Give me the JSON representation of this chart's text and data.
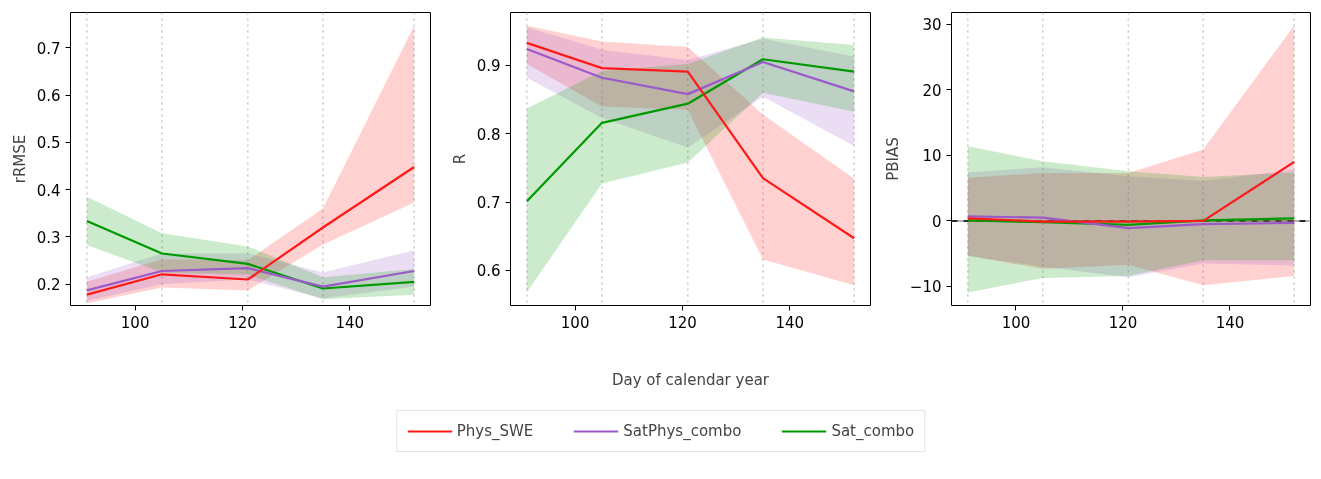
{
  "chart_data": [
    {
      "type": "line",
      "ylabel": "rRMSE",
      "x": [
        91,
        105,
        121,
        135,
        152
      ],
      "xlim": [
        87.95,
        155.05
      ],
      "xticks": [
        100,
        120,
        140
      ],
      "ylim": [
        0.155,
        0.775
      ],
      "yticks": [
        0.2,
        0.3,
        0.4,
        0.5,
        0.6,
        0.7
      ],
      "grid": false,
      "ref_lines": [
        {
          "axis": "x",
          "value": 91,
          "color": "#c8c8c8",
          "line_style": "dotted"
        },
        {
          "axis": "x",
          "value": 105,
          "color": "#c8c8c8",
          "line_style": "dotted"
        },
        {
          "axis": "x",
          "value": 121,
          "color": "#c8c8c8",
          "line_style": "dotted"
        },
        {
          "axis": "x",
          "value": 135,
          "color": "#c8c8c8",
          "line_style": "dotted"
        },
        {
          "axis": "x",
          "value": 152,
          "color": "#c8c8c8",
          "line_style": "dotted"
        }
      ],
      "series": [
        {
          "color": "#ff1a1a",
          "values": [
            0.178,
            0.221,
            0.21,
            0.32,
            0.448
          ],
          "lower": [
            0.16,
            0.193,
            0.187,
            0.284,
            0.373
          ],
          "upper": [
            0.205,
            0.253,
            0.251,
            0.36,
            0.747
          ]
        },
        {
          "color": "#9b59c9",
          "values": [
            0.187,
            0.228,
            0.234,
            0.195,
            0.228
          ],
          "lower": [
            0.165,
            0.2,
            0.21,
            0.17,
            0.195
          ],
          "upper": [
            0.215,
            0.265,
            0.265,
            0.225,
            0.272
          ]
        },
        {
          "color": "#009900",
          "values": [
            0.334,
            0.265,
            0.243,
            0.191,
            0.205
          ],
          "lower": [
            0.283,
            0.225,
            0.22,
            0.168,
            0.178
          ],
          "upper": [
            0.385,
            0.308,
            0.28,
            0.215,
            0.232
          ]
        }
      ]
    },
    {
      "type": "line",
      "ylabel": "R",
      "xlabel": "Day of calendar year",
      "legend": "bottom",
      "x": [
        91,
        105,
        121,
        135,
        152
      ],
      "xlim": [
        87.95,
        155.05
      ],
      "xticks": [
        100,
        120,
        140
      ],
      "ylim": [
        0.5485,
        0.9775
      ],
      "yticks": [
        0.6,
        0.7,
        0.8,
        0.9
      ],
      "grid": false,
      "ref_lines": [
        {
          "axis": "x",
          "value": 91,
          "color": "#c8c8c8",
          "line_style": "dotted"
        },
        {
          "axis": "x",
          "value": 105,
          "color": "#c8c8c8",
          "line_style": "dotted"
        },
        {
          "axis": "x",
          "value": 121,
          "color": "#c8c8c8",
          "line_style": "dotted"
        },
        {
          "axis": "x",
          "value": 135,
          "color": "#c8c8c8",
          "line_style": "dotted"
        },
        {
          "axis": "x",
          "value": 152,
          "color": "#c8c8c8",
          "line_style": "dotted"
        }
      ],
      "series": [
        {
          "name": "Phys_SWE",
          "color": "#ff1a1a",
          "values": [
            0.933,
            0.896,
            0.891,
            0.735,
            0.647
          ],
          "lower": [
            0.902,
            0.84,
            0.835,
            0.616,
            0.578
          ],
          "upper": [
            0.958,
            0.935,
            0.927,
            0.828,
            0.734
          ]
        },
        {
          "name": "SatPhys_combo",
          "color": "#9b59c9",
          "values": [
            0.924,
            0.882,
            0.858,
            0.905,
            0.862
          ],
          "lower": [
            0.882,
            0.823,
            0.78,
            0.854,
            0.782
          ],
          "upper": [
            0.956,
            0.923,
            0.908,
            0.939,
            0.913
          ]
        },
        {
          "name": "Sat_combo",
          "color": "#009900",
          "values": [
            0.701,
            0.816,
            0.844,
            0.909,
            0.891
          ],
          "lower": [
            0.568,
            0.727,
            0.758,
            0.86,
            0.832
          ],
          "upper": [
            0.837,
            0.892,
            0.902,
            0.941,
            0.93
          ]
        }
      ]
    },
    {
      "type": "line",
      "ylabel": "PBIAS",
      "x": [
        91,
        105,
        121,
        135,
        152
      ],
      "xlim": [
        87.95,
        155.05
      ],
      "xticks": [
        100,
        120,
        140
      ],
      "ylim": [
        -12.9,
        31.8
      ],
      "yticks": [
        {
          "value": -10,
          "label": "−10"
        },
        0,
        10,
        20,
        30
      ],
      "grid": false,
      "ref_lines": [
        {
          "axis": "x",
          "value": 91,
          "color": "#c8c8c8",
          "line_style": "dotted"
        },
        {
          "axis": "x",
          "value": 105,
          "color": "#c8c8c8",
          "line_style": "dotted"
        },
        {
          "axis": "x",
          "value": 121,
          "color": "#c8c8c8",
          "line_style": "dotted"
        },
        {
          "axis": "x",
          "value": 135,
          "color": "#c8c8c8",
          "line_style": "dotted"
        },
        {
          "axis": "x",
          "value": 152,
          "color": "#c8c8c8",
          "line_style": "dotted"
        },
        {
          "axis": "y",
          "value": 0,
          "color": "#999999",
          "line_style": "solid"
        },
        {
          "axis": "y",
          "value": 0,
          "color": "#000000",
          "line_style": "dashed"
        }
      ],
      "series": [
        {
          "color": "#ff1a1a",
          "values": [
            0.4,
            -0.1,
            -0.1,
            0,
            9.0
          ],
          "lower": [
            -5.3,
            -7.3,
            -6.7,
            -9.8,
            -8.4
          ],
          "upper": [
            6.6,
            7.3,
            7.3,
            10.9,
            29.8
          ]
        },
        {
          "color": "#9b59c9",
          "values": [
            0.7,
            0.5,
            -1.1,
            -0.5,
            -0.3
          ],
          "lower": [
            -5.3,
            -7.0,
            -8.6,
            -6.5,
            -6.8
          ],
          "upper": [
            7.4,
            8.2,
            6.8,
            6.1,
            7.8
          ]
        },
        {
          "color": "#009900",
          "values": [
            0.1,
            -0.2,
            -0.6,
            0.1,
            0.4
          ],
          "lower": [
            -10.9,
            -8.7,
            -8.4,
            -6.0,
            -6.0
          ],
          "upper": [
            11.4,
            9.1,
            7.6,
            6.7,
            7.4
          ]
        }
      ]
    }
  ]
}
